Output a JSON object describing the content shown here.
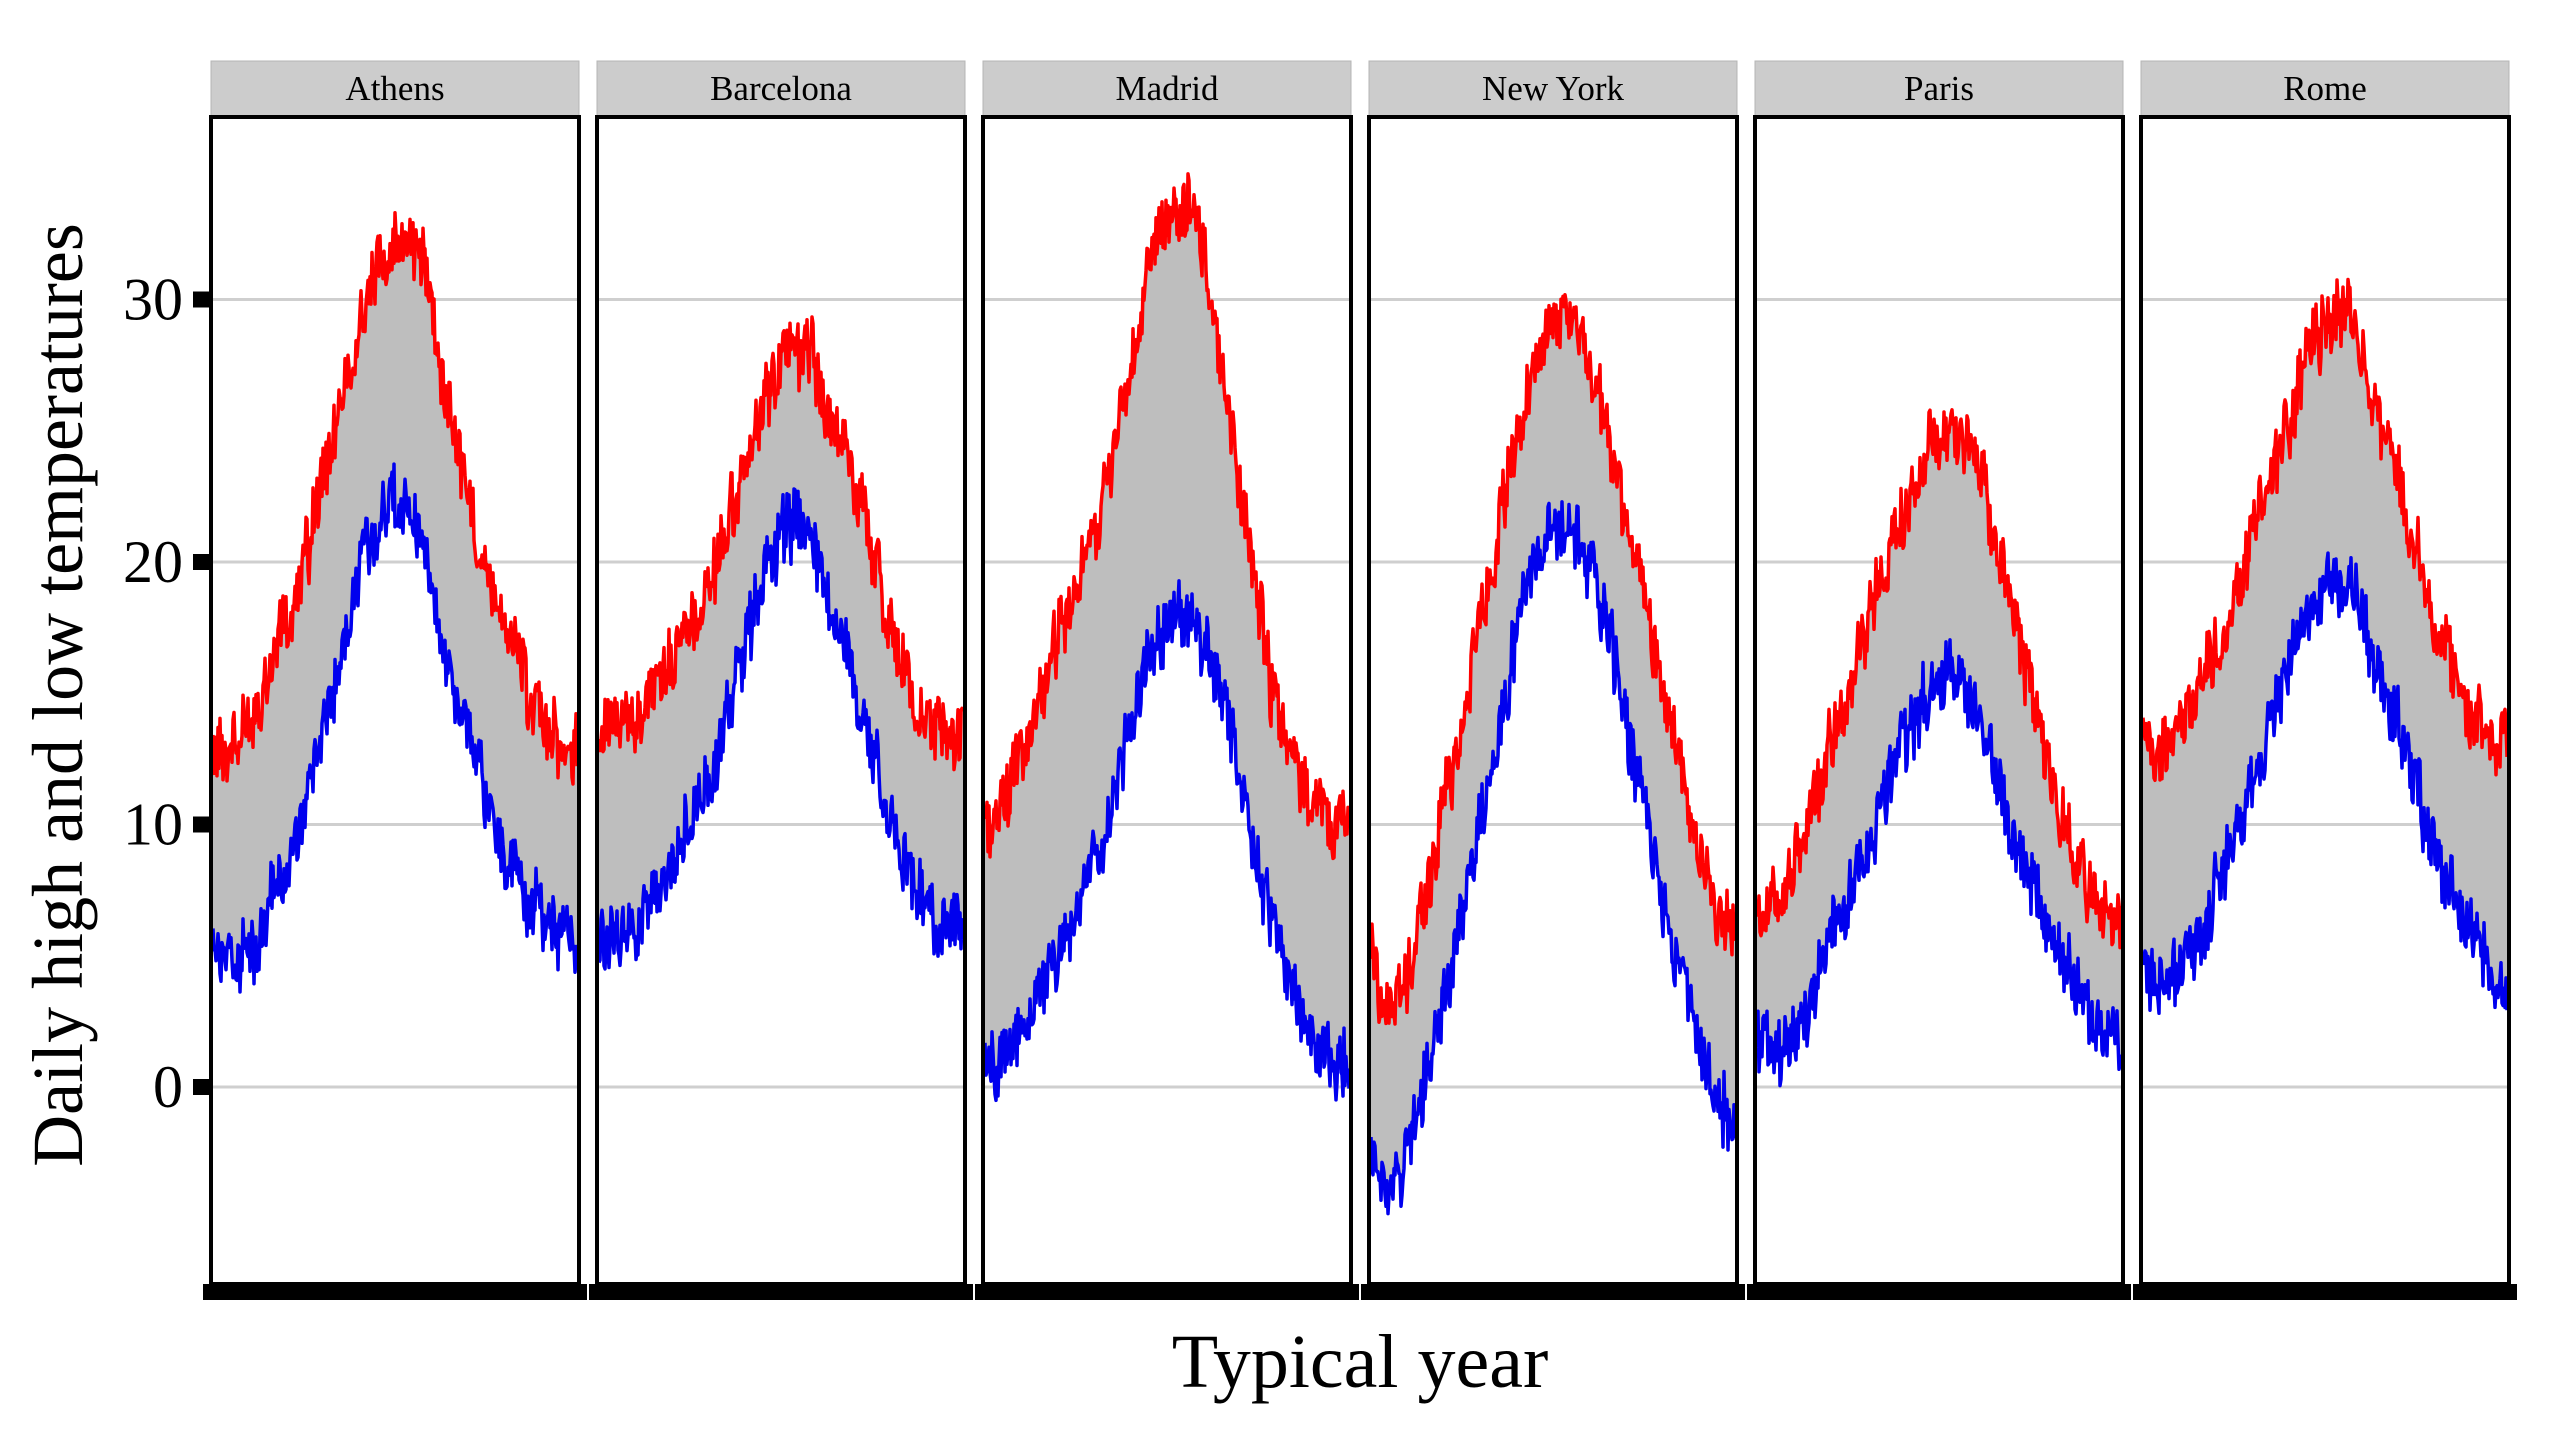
{
  "chart_data": {
    "type": "area",
    "xlabel": "Typical year",
    "ylabel": "Daily high and low temperatures",
    "ylim": [
      -7.5,
      37
    ],
    "yticks": [
      0,
      10,
      20,
      30
    ],
    "x_domain_days": [
      1,
      365
    ],
    "grid": "horizontal major lines",
    "legend": "none",
    "colors": {
      "high": "#ff0000",
      "low": "#0000ee",
      "band_fill": "#bebebe",
      "strip_fill": "#cccccc"
    },
    "panels": [
      {
        "name": "Athens",
        "day": [
          1,
          15,
          32,
          46,
          60,
          74,
          91,
          105,
          121,
          135,
          152,
          166,
          182,
          196,
          213,
          227,
          244,
          258,
          274,
          288,
          305,
          319,
          335,
          349,
          365
        ],
        "high": [
          12.5,
          12.5,
          13.5,
          14.5,
          16.5,
          17.5,
          19.5,
          22.5,
          24.5,
          27,
          29.5,
          31.5,
          32,
          32,
          31.5,
          27.5,
          25,
          22,
          19.5,
          18,
          16.5,
          14.5,
          13.5,
          13,
          13
        ],
        "low": [
          5,
          4.5,
          5,
          5.5,
          7,
          8.5,
          10,
          12.5,
          15,
          17.5,
          20.5,
          21.5,
          22.5,
          22,
          20.5,
          17.5,
          15,
          13.5,
          11,
          9,
          8,
          7,
          6.5,
          5.5,
          5
        ]
      },
      {
        "name": "Barcelona",
        "day": [
          1,
          15,
          32,
          46,
          60,
          74,
          91,
          105,
          121,
          135,
          152,
          166,
          182,
          196,
          213,
          227,
          244,
          258,
          274,
          288,
          305,
          319,
          335,
          349,
          365
        ],
        "high": [
          13.5,
          13.5,
          14,
          14.5,
          15.5,
          16.5,
          17.5,
          18.5,
          20,
          22,
          24,
          26,
          27.5,
          28,
          28,
          26,
          24.5,
          23,
          20.5,
          18,
          16,
          14.5,
          14,
          13.5,
          13.5
        ],
        "low": [
          6,
          5.5,
          6,
          6.5,
          7.5,
          8.5,
          10,
          11,
          13,
          15,
          17.5,
          19.5,
          21,
          21.5,
          21,
          19.5,
          17.5,
          15,
          13,
          11,
          9,
          7.5,
          6.5,
          6,
          6
        ]
      },
      {
        "name": "Madrid",
        "day": [
          1,
          15,
          32,
          46,
          60,
          74,
          91,
          105,
          121,
          135,
          152,
          166,
          182,
          196,
          213,
          227,
          244,
          258,
          274,
          288,
          305,
          319,
          335,
          349,
          365
        ],
        "high": [
          10,
          10.5,
          12,
          13.5,
          15.5,
          17,
          18.5,
          20.5,
          22.5,
          25,
          28.5,
          31.5,
          33,
          33.5,
          33,
          30,
          26,
          22,
          18.5,
          15,
          13,
          11.5,
          10.5,
          10,
          10
        ],
        "low": [
          1.5,
          1,
          1.5,
          2.5,
          4,
          5,
          6.5,
          8,
          9.5,
          12,
          14.5,
          16.5,
          17.5,
          18,
          17.5,
          16,
          14,
          11.5,
          8.5,
          6,
          4,
          2.5,
          1.5,
          1,
          0.5
        ]
      },
      {
        "name": "New York",
        "day": [
          1,
          15,
          32,
          46,
          60,
          74,
          91,
          105,
          121,
          135,
          152,
          166,
          182,
          196,
          213,
          227,
          244,
          258,
          274,
          288,
          305,
          319,
          335,
          349,
          365
        ],
        "high": [
          5,
          3,
          3.5,
          5.5,
          8,
          11,
          13.5,
          17,
          19.5,
          22.5,
          25.5,
          27.5,
          29,
          29,
          28.5,
          26.5,
          24,
          21.5,
          19,
          16,
          13,
          10.5,
          8.5,
          6.5,
          6
        ],
        "low": [
          -2.5,
          -4,
          -3.5,
          -1,
          1,
          3.5,
          6.5,
          9.5,
          12,
          15,
          18.5,
          20,
          21,
          21,
          20.5,
          19,
          16.5,
          13.5,
          11,
          8,
          5,
          3,
          1,
          -0.5,
          -1
        ]
      },
      {
        "name": "Paris",
        "day": [
          1,
          15,
          32,
          46,
          60,
          74,
          91,
          105,
          121,
          135,
          152,
          166,
          182,
          196,
          213,
          227,
          244,
          258,
          274,
          288,
          305,
          319,
          335,
          349,
          365
        ],
        "high": [
          6.5,
          7,
          7.5,
          9,
          11,
          13,
          15,
          17,
          19,
          20.5,
          22,
          23.5,
          25,
          25,
          24.5,
          23,
          20,
          18,
          15,
          13,
          10.5,
          9,
          7.5,
          6.5,
          6
        ],
        "low": [
          2,
          1.5,
          1.5,
          2.5,
          4,
          5.5,
          7,
          8.5,
          10,
          12,
          13.5,
          14.5,
          15.5,
          15.5,
          15,
          13.5,
          11.5,
          10,
          8,
          6.5,
          5,
          4,
          3,
          2,
          1.5
        ]
      },
      {
        "name": "Rome",
        "day": [
          1,
          15,
          32,
          46,
          60,
          74,
          91,
          105,
          121,
          135,
          152,
          166,
          182,
          196,
          213,
          227,
          244,
          258,
          274,
          288,
          305,
          319,
          335,
          349,
          365
        ],
        "high": [
          13,
          12.5,
          13.5,
          14.5,
          15.5,
          16.5,
          18.5,
          20,
          22.5,
          24,
          26,
          28,
          29,
          29.5,
          29,
          27,
          25,
          23,
          20.5,
          18.5,
          16.5,
          15,
          14,
          13,
          13
        ],
        "low": [
          4,
          3.5,
          4,
          5,
          6,
          7.5,
          9,
          11,
          13,
          15,
          17,
          18.5,
          19,
          19,
          18.5,
          17,
          15,
          13.5,
          11.5,
          9.5,
          8,
          6.5,
          5.5,
          4.5,
          4
        ]
      }
    ]
  }
}
